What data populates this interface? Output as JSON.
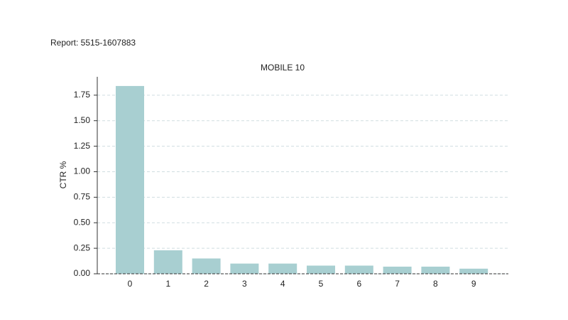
{
  "chart_data": {
    "type": "bar",
    "report": "Report: 5515-1607883",
    "title": "MOBILE 10",
    "y_label": "CTR %",
    "categories": [
      "0",
      "1",
      "2",
      "3",
      "4",
      "5",
      "6",
      "7",
      "8",
      "9"
    ],
    "values": [
      1.84,
      0.23,
      0.15,
      0.1,
      0.1,
      0.08,
      0.08,
      0.07,
      0.07,
      0.05
    ],
    "color": "#a8cfd1",
    "ylim": [
      0,
      1.93
    ],
    "yticks": [
      {
        "value": 0,
        "label": "0.00"
      },
      {
        "value": 0.25,
        "label": "0.25"
      },
      {
        "value": 0.5,
        "label": "0.50"
      },
      {
        "value": 0.75,
        "label": "0.75"
      },
      {
        "value": 1,
        "label": "1.00"
      },
      {
        "value": 1.25,
        "label": "1.25"
      },
      {
        "value": 1.5,
        "label": "1.50"
      },
      {
        "value": 1.75,
        "label": "1.75"
      }
    ],
    "grid": true
  }
}
